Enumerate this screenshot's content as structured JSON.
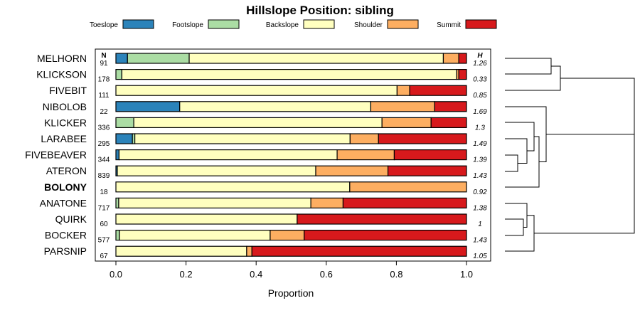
{
  "chart_data": {
    "type": "bar",
    "orientation": "horizontal-stacked",
    "title": "Hillslope Position: sibling",
    "xlabel": "Proportion",
    "xlim": [
      0,
      1
    ],
    "xticks": [
      "0.0",
      "0.2",
      "0.4",
      "0.6",
      "0.8",
      "1.0"
    ],
    "xtick_values": [
      0,
      0.2,
      0.4,
      0.6,
      0.8,
      1.0
    ],
    "n_header": "N",
    "h_header": "H",
    "legend": [
      {
        "name": "Toeslope",
        "color": "#2b83ba"
      },
      {
        "name": "Footslope",
        "color": "#abdda4"
      },
      {
        "name": "Backslope",
        "color": "#ffffbf"
      },
      {
        "name": "Shoulder",
        "color": "#fdae61"
      },
      {
        "name": "Summit",
        "color": "#d7191c"
      }
    ],
    "rows": [
      {
        "name": "MELHORN",
        "bold": false,
        "n": "91",
        "h": "1.26",
        "values": [
          0.033,
          0.176,
          0.725,
          0.044,
          0.022
        ]
      },
      {
        "name": "KLICKSON",
        "bold": false,
        "n": "178",
        "h": "0.33",
        "values": [
          0.0,
          0.017,
          0.955,
          0.006,
          0.022
        ]
      },
      {
        "name": "FIVEBIT",
        "bold": false,
        "n": "111",
        "h": "0.85",
        "values": [
          0.0,
          0.0,
          0.802,
          0.036,
          0.162
        ]
      },
      {
        "name": "NIBOLOB",
        "bold": false,
        "n": "22",
        "h": "1.69",
        "values": [
          0.182,
          0.0,
          0.545,
          0.182,
          0.091
        ]
      },
      {
        "name": "KLICKER",
        "bold": false,
        "n": "336",
        "h": "1.3",
        "values": [
          0.0,
          0.051,
          0.708,
          0.14,
          0.101
        ]
      },
      {
        "name": "LARABEE",
        "bold": false,
        "n": "295",
        "h": "1.49",
        "values": [
          0.047,
          0.007,
          0.614,
          0.081,
          0.251
        ]
      },
      {
        "name": "FIVEBEAVER",
        "bold": false,
        "n": "344",
        "h": "1.39",
        "values": [
          0.009,
          0.0,
          0.622,
          0.163,
          0.206
        ]
      },
      {
        "name": "ATERON",
        "bold": false,
        "n": "839",
        "h": "1.43",
        "values": [
          0.004,
          0.0,
          0.566,
          0.206,
          0.224
        ]
      },
      {
        "name": "BOLONY",
        "bold": true,
        "n": "18",
        "h": "0.92",
        "values": [
          0.0,
          0.0,
          0.667,
          0.333,
          0.0
        ]
      },
      {
        "name": "ANATONE",
        "bold": false,
        "n": "717",
        "h": "1.38",
        "values": [
          0.0,
          0.008,
          0.548,
          0.092,
          0.352
        ]
      },
      {
        "name": "QUIRK",
        "bold": false,
        "n": "60",
        "h": "1",
        "values": [
          0.0,
          0.0,
          0.517,
          0.0,
          0.483
        ]
      },
      {
        "name": "BOCKER",
        "bold": false,
        "n": "577",
        "h": "1.43",
        "values": [
          0.0,
          0.01,
          0.43,
          0.097,
          0.463
        ]
      },
      {
        "name": "PARSNIP",
        "bold": false,
        "n": "67",
        "h": "1.05",
        "values": [
          0.0,
          0.0,
          0.373,
          0.015,
          0.612
        ]
      }
    ]
  }
}
